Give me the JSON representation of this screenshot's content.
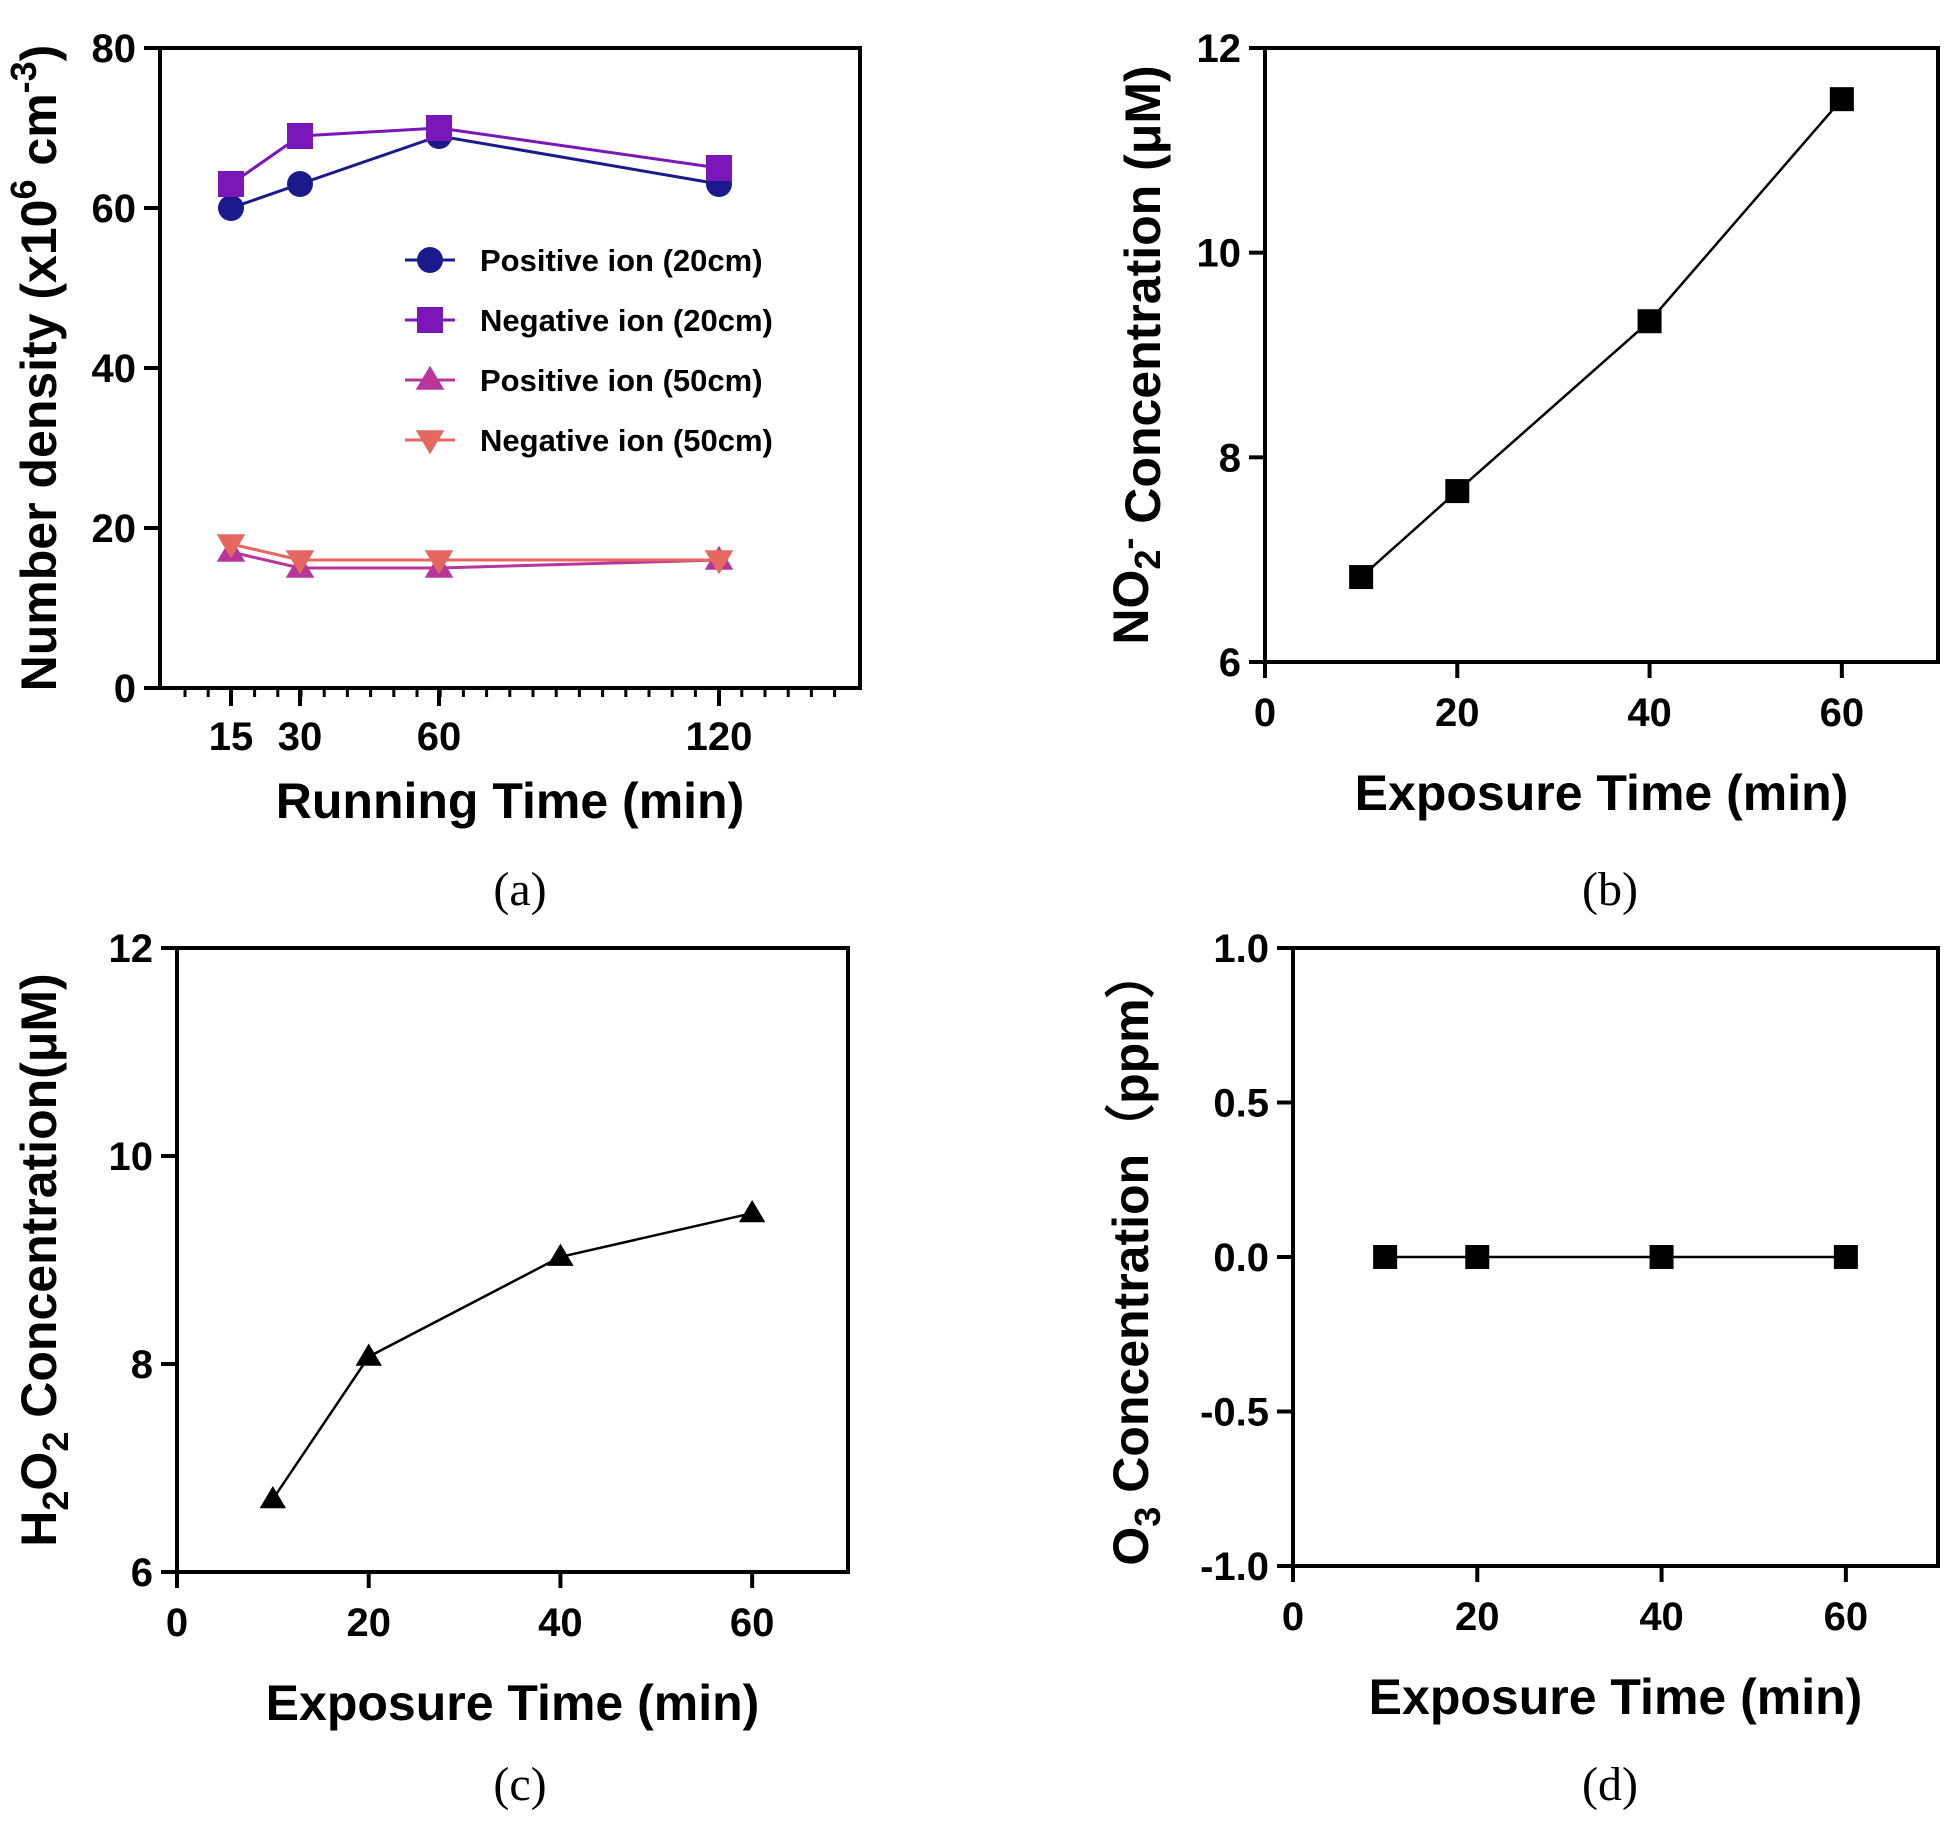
{
  "chart_data": [
    {
      "type": "line",
      "panel_label": "(a)",
      "xlabel": "Running Time (min)",
      "ylabel_parts": [
        "Number density (x10",
        "6",
        " cm",
        "-3",
        ")"
      ],
      "ylim": [
        0,
        80
      ],
      "y_ticks": [
        "0",
        "20",
        "40",
        "60",
        "80"
      ],
      "x_ticks": [
        "15",
        "30",
        "60",
        "120"
      ],
      "x": [
        15,
        30,
        60,
        120
      ],
      "series": [
        {
          "name": "Positive ion (20cm)",
          "color": "#1a1a8c",
          "marker": "circle",
          "values": [
            60,
            63,
            69,
            63
          ]
        },
        {
          "name": "Negative ion  (20cm)",
          "color": "#7b16b8",
          "marker": "square",
          "values": [
            63,
            69,
            70,
            65
          ]
        },
        {
          "name": "Positive ion (50cm)",
          "color": "#b8369a",
          "marker": "triangle-up",
          "values": [
            17,
            15,
            15,
            16
          ]
        },
        {
          "name": "Negative ion  (50cm)",
          "color": "#e5675f",
          "marker": "triangle-down",
          "values": [
            18,
            16,
            16,
            16
          ]
        }
      ]
    },
    {
      "type": "line",
      "panel_label": "(b)",
      "xlabel": "Exposure Time (min)",
      "ylabel_parts": [
        "NO",
        "2",
        "-",
        " Concentration (μM)"
      ],
      "ylim": [
        6,
        12
      ],
      "y_ticks": [
        "6",
        "8",
        "10",
        "12"
      ],
      "xlim": [
        0,
        70
      ],
      "x_ticks": [
        "0",
        "20",
        "40",
        "60"
      ],
      "x": [
        10,
        20,
        40,
        60
      ],
      "series": [
        {
          "name": "NO2-",
          "color": "#000000",
          "marker": "square",
          "values": [
            6.83,
            7.67,
            9.33,
            11.5
          ]
        }
      ]
    },
    {
      "type": "line",
      "panel_label": "(c)",
      "xlabel": "Exposure Time (min)",
      "ylabel_parts": [
        "H",
        "2",
        "O",
        "2",
        " Concentration(μM)"
      ],
      "ylim": [
        6,
        12
      ],
      "y_ticks": [
        "6",
        "8",
        "10",
        "12"
      ],
      "xlim": [
        0,
        70
      ],
      "x_ticks": [
        "0",
        "20",
        "40",
        "60"
      ],
      "x": [
        10,
        20,
        40,
        60
      ],
      "series": [
        {
          "name": "H2O2",
          "color": "#000000",
          "marker": "triangle-up",
          "values": [
            6.7,
            8.07,
            9.03,
            9.45
          ]
        }
      ]
    },
    {
      "type": "line",
      "panel_label": "(d)",
      "xlabel": "Exposure Time (min)",
      "ylabel_parts": [
        "O",
        "3",
        " Concentration（ppm）"
      ],
      "ylim": [
        -1.0,
        1.0
      ],
      "y_ticks": [
        "-1.0",
        "-0.5",
        "0.0",
        "0.5",
        "1.0"
      ],
      "xlim": [
        0,
        70
      ],
      "x_ticks": [
        "0",
        "20",
        "40",
        "60"
      ],
      "x": [
        10,
        20,
        40,
        60
      ],
      "series": [
        {
          "name": "O3",
          "color": "#000000",
          "marker": "square",
          "values": [
            0,
            0,
            0,
            0
          ]
        }
      ]
    }
  ]
}
